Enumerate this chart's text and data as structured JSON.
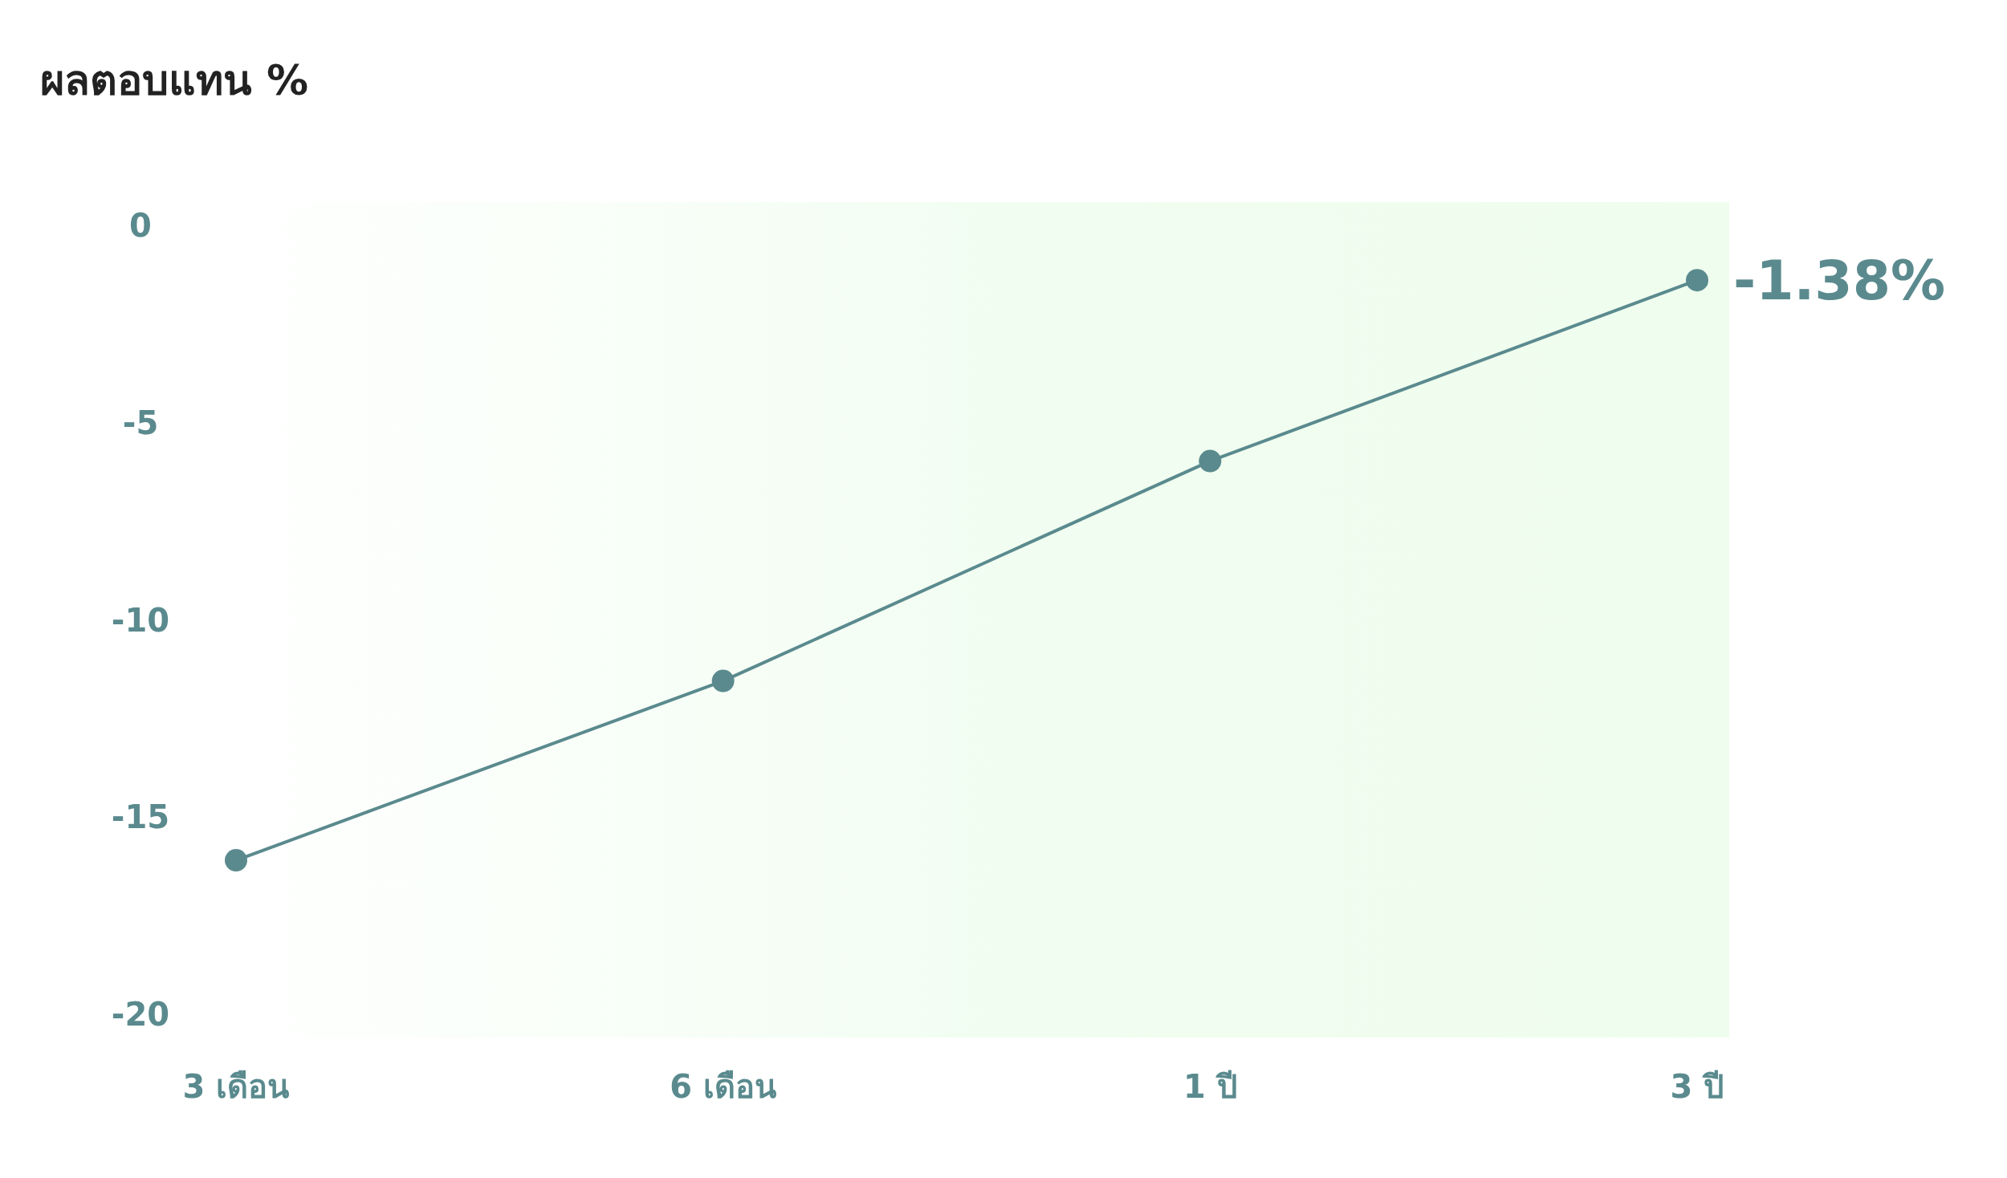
{
  "chart_data": {
    "type": "line",
    "title": "ผลตอบแทน %",
    "categories": [
      "3 เดือน",
      "6 เดือน",
      "1 ปี",
      "3 ปี"
    ],
    "series": [
      {
        "color": "#5a8a8e",
        "values": [
          -16.1,
          -11.55,
          -5.97,
          -1.38
        ],
        "value_labels": [
          null,
          null,
          null,
          "-1.38%"
        ]
      }
    ],
    "ylim": [
      -20.6,
      0.6
    ],
    "yticks": [
      0,
      -5,
      -10,
      -15,
      -20
    ],
    "marker": "circle",
    "grid": false
  }
}
